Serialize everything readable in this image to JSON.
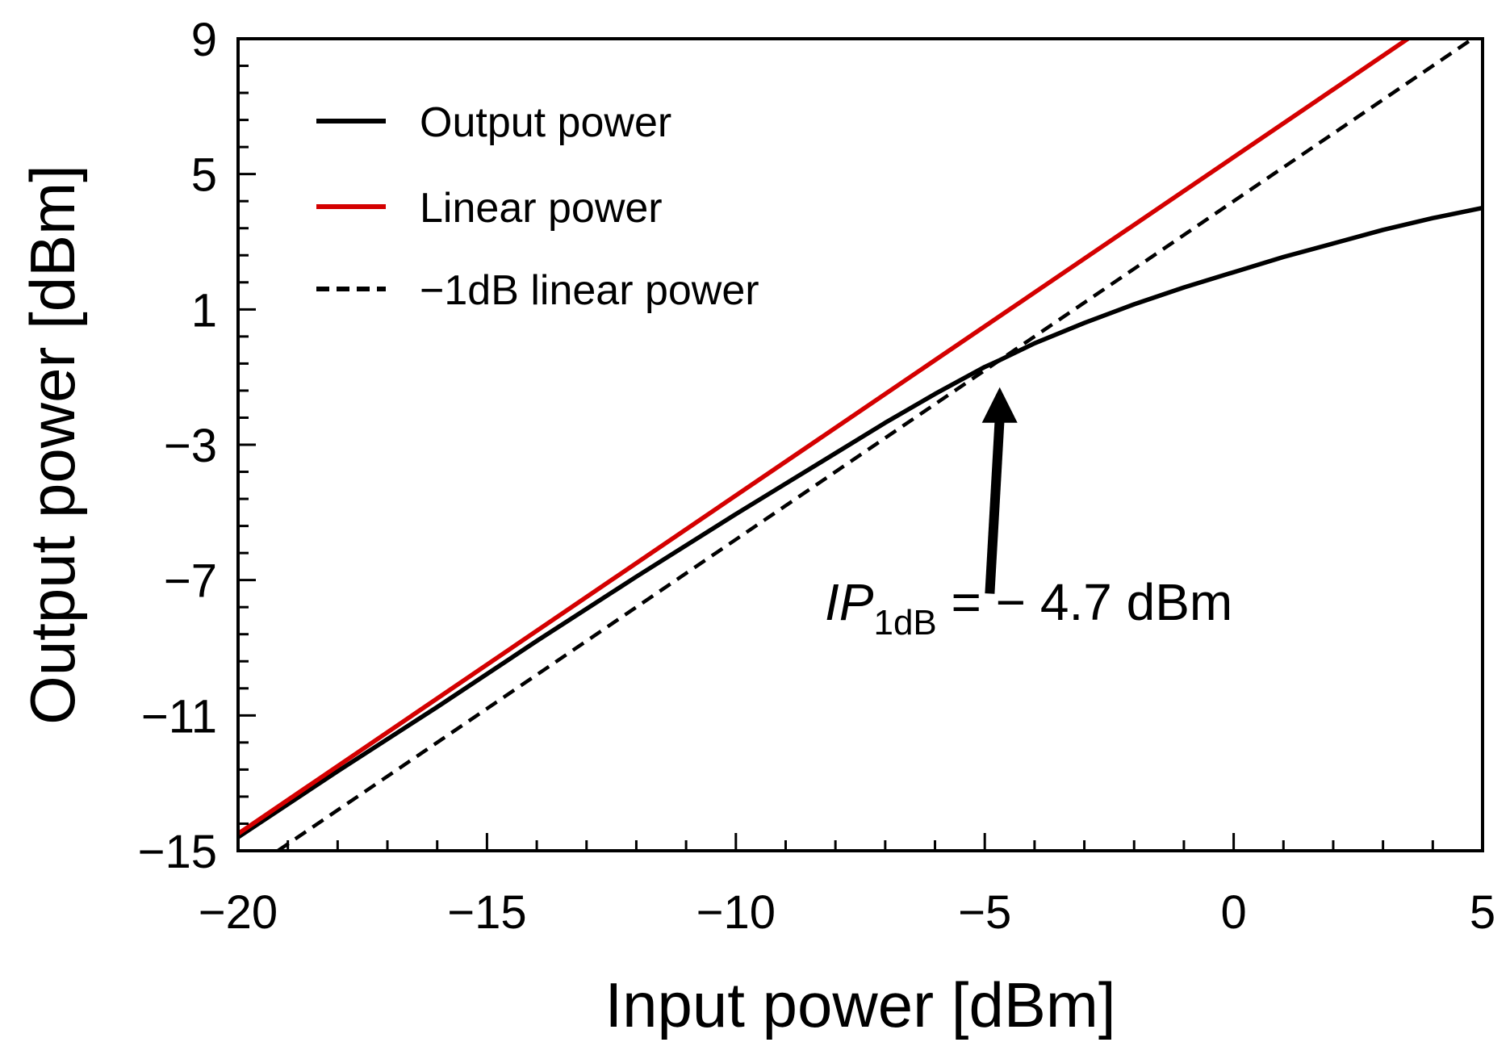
{
  "chart_data": {
    "type": "line",
    "xlabel": "Input power [dBm]",
    "ylabel": "Output power [dBm]",
    "xlim": [
      -20,
      5
    ],
    "ylim": [
      -15,
      9
    ],
    "xticks": [
      -20,
      -15,
      -10,
      -5,
      0,
      5
    ],
    "xtick_labels": [
      "−20",
      "−15",
      "−10",
      "−5",
      "0",
      "5"
    ],
    "yticks": [
      -15,
      -11,
      -7,
      -3,
      1,
      5,
      9
    ],
    "ytick_labels": [
      "−15",
      "−11",
      "−7",
      "−3",
      "1",
      "5",
      "9"
    ],
    "x_minor_step": 1,
    "y_minor_step": 0.8,
    "grid": false,
    "legend_position": "top-left",
    "series": [
      {
        "name": "Output power",
        "color": "#000000",
        "dash": "solid",
        "x": [
          -20,
          -18,
          -16,
          -14,
          -12,
          -10,
          -9,
          -8,
          -7,
          -6,
          -5,
          -4.7,
          -4,
          -3,
          -2,
          -1,
          0,
          1,
          2,
          3,
          4,
          5
        ],
        "y": [
          -14.6,
          -12.65,
          -10.75,
          -8.8,
          -6.9,
          -5.05,
          -4.15,
          -3.25,
          -2.35,
          -1.5,
          -0.7,
          -0.5,
          0.0,
          0.6,
          1.15,
          1.65,
          2.1,
          2.55,
          2.95,
          3.35,
          3.7,
          4.0
        ]
      },
      {
        "name": "Linear power",
        "color": "#d40000",
        "dash": "solid",
        "x": [
          -20,
          3.5
        ],
        "y": [
          -14.5,
          9.0
        ]
      },
      {
        "name": "−1dB linear power",
        "color": "#000000",
        "dash": "dashed",
        "x": [
          -19.2,
          4.8
        ],
        "y": [
          -15.0,
          9.0
        ]
      }
    ],
    "annotations": [
      {
        "type": "arrow",
        "from": [
          -4.9,
          -7.4
        ],
        "to": [
          -4.7,
          -1.3
        ],
        "text_prefix": "IP",
        "text_sub": "1dB",
        "text_suffix": " = − 4.7 dBm"
      }
    ]
  }
}
